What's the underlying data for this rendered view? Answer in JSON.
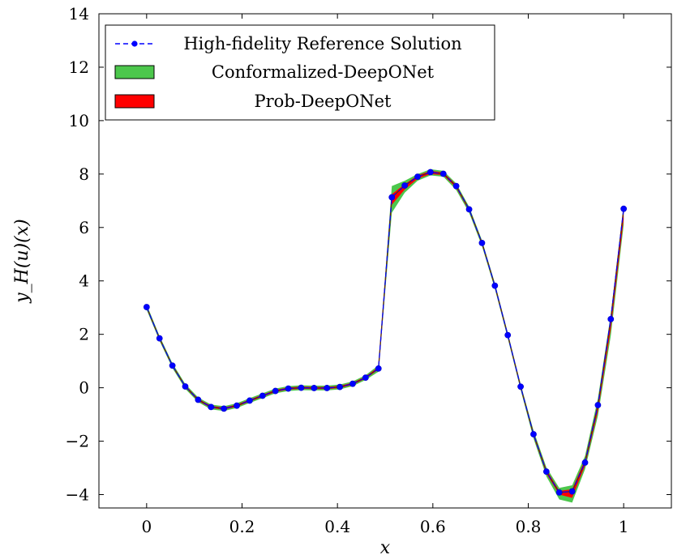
{
  "chart_data": {
    "type": "line",
    "title": "",
    "xlabel": "x",
    "ylabel": "y_H(u)(x)",
    "xlim": [
      -0.1,
      1.1
    ],
    "ylim": [
      -4.5,
      14
    ],
    "x_ticks": [
      0,
      0.2,
      0.4,
      0.6,
      0.8,
      1
    ],
    "x_tick_labels": [
      "0",
      "0.2",
      "0.4",
      "0.6",
      "0.8",
      "1"
    ],
    "y_ticks": [
      -4,
      -2,
      0,
      2,
      4,
      6,
      8,
      10,
      12,
      14
    ],
    "y_tick_labels": [
      "−4",
      "−2",
      "0",
      "2",
      "4",
      "6",
      "8",
      "10",
      "12",
      "14"
    ],
    "grid": false,
    "legend_position": "top-left",
    "legend": [
      {
        "label": "High-fidelity Reference Solution",
        "style": "dashed-line-markers",
        "color": "#0000ff"
      },
      {
        "label": "Conformalized-DeepONet",
        "style": "band",
        "color": "#4cc74c"
      },
      {
        "label": "Prob-DeepONet",
        "style": "band",
        "color": "#ff0000"
      }
    ],
    "x": [
      0,
      0.027,
      0.054,
      0.081,
      0.108,
      0.135,
      0.162,
      0.189,
      0.216,
      0.243,
      0.27,
      0.297,
      0.324,
      0.351,
      0.378,
      0.405,
      0.432,
      0.459,
      0.486,
      0.514,
      0.541,
      0.568,
      0.595,
      0.622,
      0.649,
      0.676,
      0.703,
      0.73,
      0.757,
      0.784,
      0.811,
      0.838,
      0.865,
      0.892,
      0.919,
      0.946,
      0.973,
      1.0
    ],
    "series": [
      {
        "name": "High-fidelity Reference Solution",
        "values": [
          3.02,
          1.85,
          0.83,
          0.05,
          -0.45,
          -0.72,
          -0.78,
          -0.67,
          -0.48,
          -0.3,
          -0.12,
          -0.03,
          0.0,
          -0.01,
          -0.01,
          0.03,
          0.15,
          0.38,
          0.72,
          7.13,
          7.57,
          7.9,
          8.07,
          8.01,
          7.55,
          6.68,
          5.42,
          3.82,
          1.97,
          0.04,
          -1.74,
          -3.14,
          -3.92,
          -3.88,
          -2.8,
          -0.65,
          2.57,
          6.7
        ]
      },
      {
        "name": "Conformalized-DeepONet",
        "lower": [
          2.92,
          1.76,
          0.74,
          -0.04,
          -0.54,
          -0.81,
          -0.87,
          -0.76,
          -0.57,
          -0.39,
          -0.21,
          -0.12,
          -0.09,
          -0.1,
          -0.1,
          -0.06,
          0.06,
          0.29,
          0.6,
          6.55,
          7.3,
          7.75,
          7.95,
          7.9,
          7.4,
          6.55,
          5.3,
          3.7,
          1.85,
          -0.08,
          -1.9,
          -3.32,
          -4.18,
          -4.3,
          -3.05,
          -1.05,
          1.95,
          6.1
        ],
        "upper": [
          3.12,
          1.94,
          0.92,
          0.14,
          -0.36,
          -0.63,
          -0.69,
          -0.58,
          -0.39,
          -0.21,
          -0.03,
          0.06,
          0.09,
          0.08,
          0.08,
          0.12,
          0.24,
          0.47,
          0.84,
          7.55,
          7.75,
          8.0,
          8.18,
          8.12,
          7.65,
          6.78,
          5.52,
          3.92,
          2.07,
          0.14,
          -1.6,
          -2.98,
          -3.75,
          -3.65,
          -2.55,
          -0.4,
          2.75,
          6.8
        ]
      },
      {
        "name": "Prob-DeepONet",
        "lower": [
          2.98,
          1.81,
          0.79,
          0.01,
          -0.49,
          -0.76,
          -0.82,
          -0.71,
          -0.52,
          -0.34,
          -0.16,
          -0.07,
          -0.04,
          -0.05,
          -0.05,
          -0.01,
          0.11,
          0.34,
          0.68,
          6.85,
          7.42,
          7.82,
          8.0,
          7.96,
          7.48,
          6.62,
          5.36,
          3.76,
          1.91,
          -0.02,
          -1.82,
          -3.22,
          -4.0,
          -4.12,
          -2.92,
          -0.88,
          2.2,
          6.3
        ],
        "upper": [
          3.06,
          1.89,
          0.87,
          0.09,
          -0.41,
          -0.68,
          -0.74,
          -0.63,
          -0.44,
          -0.26,
          -0.08,
          0.01,
          0.04,
          0.03,
          0.03,
          0.07,
          0.19,
          0.42,
          0.78,
          7.25,
          7.62,
          7.95,
          8.12,
          8.06,
          7.6,
          6.72,
          5.46,
          3.86,
          2.01,
          0.08,
          -1.68,
          -3.06,
          -3.86,
          -3.8,
          -2.68,
          -0.55,
          2.62,
          6.65
        ]
      }
    ]
  }
}
